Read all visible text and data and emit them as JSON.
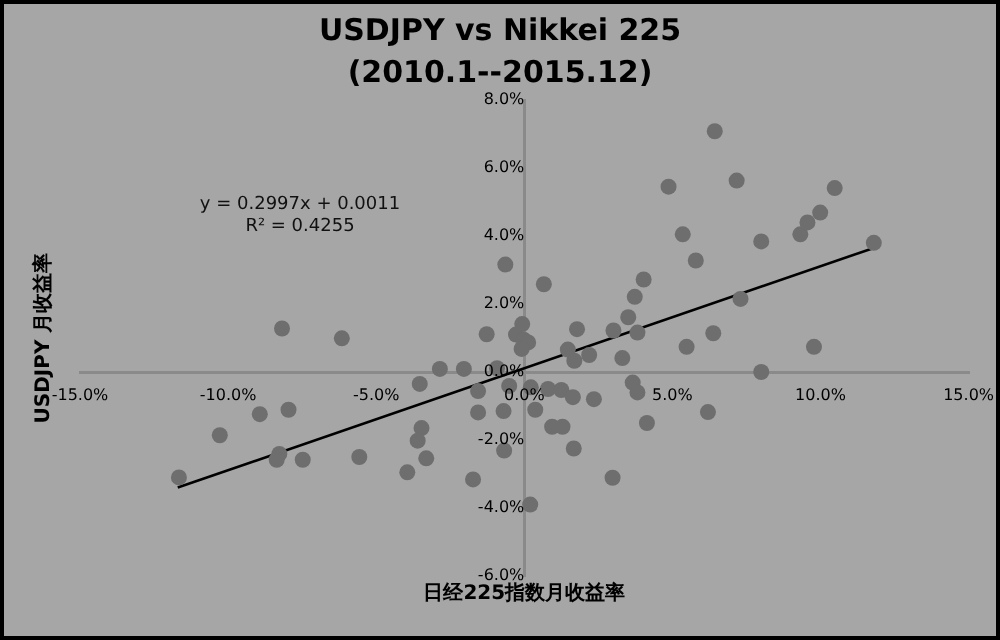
{
  "chart_data": {
    "type": "scatter",
    "title": "USDJPY vs Nikkei 225",
    "subtitle": "(2010.1--2015.12)",
    "xlabel": "日经225指数月收益率",
    "ylabel": "USDJPY 月收益率",
    "annotations": [
      "y = 0.2997x + 0.0011",
      "R² = 0.4255"
    ],
    "xlim": [
      -15,
      15
    ],
    "xticks": [
      {
        "value": -15,
        "label": "-15.0%"
      },
      {
        "value": -10,
        "label": "-10.0%"
      },
      {
        "value": -5,
        "label": "-5.0%"
      },
      {
        "value": 0,
        "label": "0.0%"
      },
      {
        "value": 5,
        "label": "5.0%"
      },
      {
        "value": 10,
        "label": "10.0%"
      },
      {
        "value": 15,
        "label": "15.0%"
      }
    ],
    "ylim": [
      -6,
      8
    ],
    "yticks": [
      {
        "value": -6,
        "label": "-6.0%"
      },
      {
        "value": -4,
        "label": "-4.0%"
      },
      {
        "value": -2,
        "label": "-2.0%"
      },
      {
        "value": 0,
        "label": "0.0%"
      },
      {
        "value": 2,
        "label": "2.0%"
      },
      {
        "value": 4,
        "label": "4.0%"
      },
      {
        "value": 6,
        "label": "6.0%"
      },
      {
        "value": 8,
        "label": "8.0%"
      }
    ],
    "grid": false,
    "legend": false,
    "marker": "circle",
    "series": [
      {
        "color": "#6e6e6e",
        "x": [
          -11.66,
          -10.28,
          -8.93,
          -8.18,
          -7.96,
          -8.27,
          -8.36,
          -7.48,
          -6.16,
          -5.57,
          -3.95,
          -3.53,
          -3.47,
          -3.6,
          -3.31,
          -2.85,
          -2.04,
          -1.73,
          -1.56,
          -1.56,
          -1.27,
          -0.92,
          -0.7,
          -0.68,
          -0.64,
          -0.51,
          -0.07,
          -0.28,
          -0.02,
          0.13,
          -0.09,
          0.22,
          0.37,
          0.2,
          0.66,
          0.94,
          0.8,
          1.29,
          1.25,
          1.64,
          1.67,
          1.47,
          1.69,
          1.78,
          2.19,
          2.35,
          3.01,
          2.98,
          3.31,
          3.51,
          3.66,
          3.82,
          3.73,
          3.82,
          4.03,
          4.14,
          4.87,
          5.35,
          5.48,
          5.79,
          6.2,
          6.38,
          6.43,
          7.17,
          7.3,
          8.0,
          8.0,
          9.32,
          9.56,
          9.78,
          9.99,
          10.48,
          11.8
        ],
        "values": [
          -3.1,
          -1.86,
          -1.24,
          1.28,
          -1.11,
          -2.41,
          -2.58,
          -2.58,
          0.99,
          -2.5,
          -2.95,
          -0.35,
          -1.65,
          -2.02,
          -2.54,
          0.09,
          0.09,
          -3.16,
          -0.56,
          -1.19,
          1.11,
          0.11,
          -1.15,
          -2.31,
          3.16,
          -0.41,
          1.41,
          1.1,
          0.95,
          0.87,
          0.68,
          -0.45,
          -1.11,
          -3.9,
          2.58,
          -1.61,
          -0.5,
          -1.61,
          -0.53,
          -0.74,
          -2.25,
          0.66,
          0.33,
          1.26,
          0.5,
          -0.8,
          1.22,
          -3.11,
          0.41,
          1.61,
          -0.31,
          -0.6,
          2.21,
          1.16,
          2.72,
          -1.5,
          5.45,
          4.05,
          0.74,
          3.28,
          -1.18,
          1.14,
          7.08,
          5.63,
          2.15,
          3.84,
          0.0,
          4.05,
          4.4,
          0.74,
          4.69,
          5.41,
          3.8
        ]
      },
      {
        "type": "line",
        "color": "#000000",
        "marker": "none",
        "line_style": "solid",
        "x": [
          -11.7,
          11.8
        ],
        "values": [
          -3.4,
          3.65
        ]
      }
    ]
  }
}
